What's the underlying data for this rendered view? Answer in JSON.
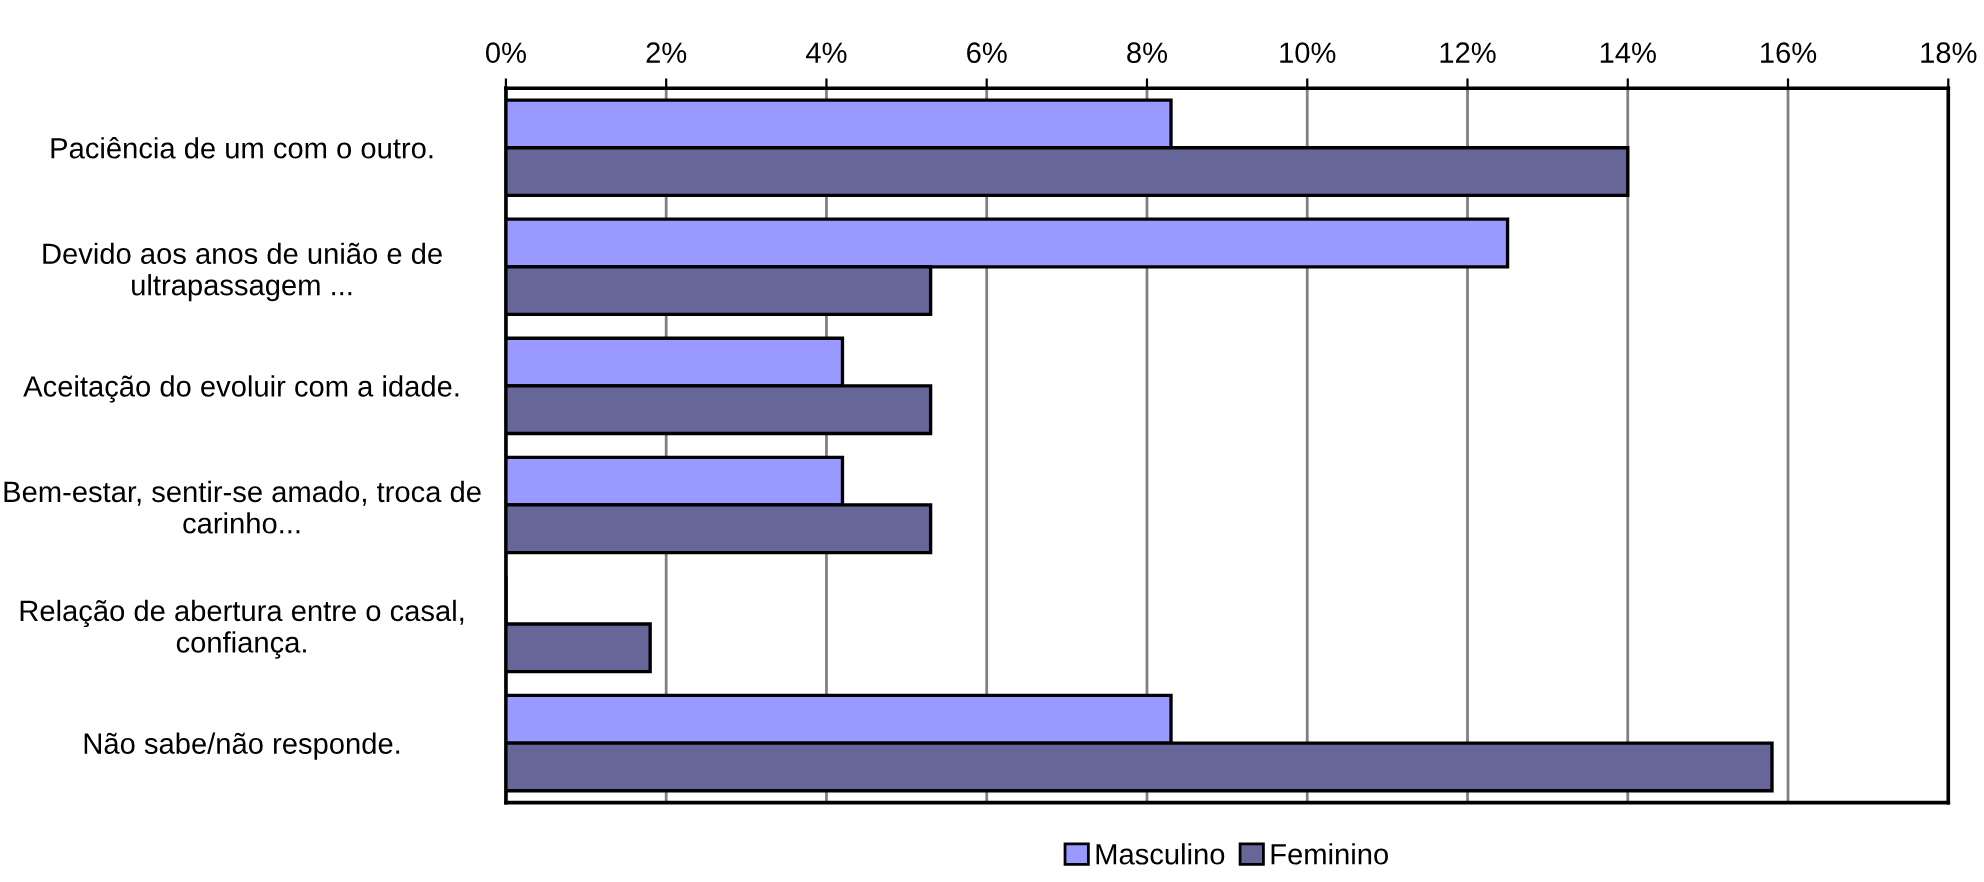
{
  "chart_data": {
    "type": "bar",
    "orientation": "horizontal",
    "categories": [
      "Paciência de um com o outro.",
      "Devido aos anos de união e de ultrapassagem ...",
      "Aceitação do evoluir com a idade.",
      "Bem-estar, sentir-se amado, troca de carinho...",
      "Relação de abertura entre o casal, confiança.",
      "Não sabe/não responde."
    ],
    "series": [
      {
        "name": "Masculino",
        "color": "#9999ff",
        "values": [
          8.3,
          12.5,
          4.2,
          4.2,
          0,
          8.3
        ]
      },
      {
        "name": "Feminino",
        "color": "#666699",
        "values": [
          14.0,
          5.3,
          5.3,
          5.3,
          1.8,
          15.8
        ]
      }
    ],
    "xlim": [
      0,
      18
    ],
    "xticks": [
      {
        "value": 0,
        "label": "0%"
      },
      {
        "value": 2,
        "label": "2%"
      },
      {
        "value": 4,
        "label": "4%"
      },
      {
        "value": 6,
        "label": "6%"
      },
      {
        "value": 8,
        "label": "8%"
      },
      {
        "value": 10,
        "label": "10%"
      },
      {
        "value": 12,
        "label": "12%"
      },
      {
        "value": 14,
        "label": "14%"
      },
      {
        "value": 16,
        "label": "16%"
      },
      {
        "value": 18,
        "label": "18%"
      }
    ],
    "grid": "x",
    "legend": "bottom"
  }
}
